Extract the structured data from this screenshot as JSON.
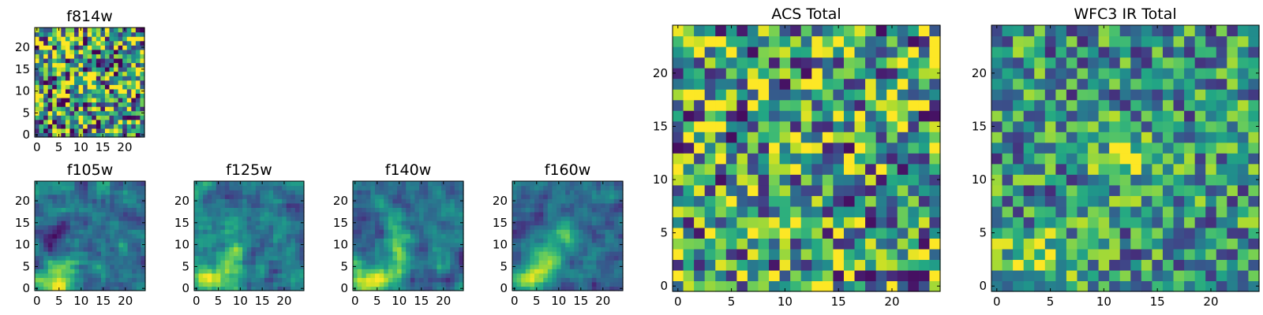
{
  "chart_data": [
    {
      "type": "heatmap",
      "title": "f814w",
      "colormap": "viridis",
      "pixels": [
        25,
        25
      ],
      "xlim": [
        -0.5,
        24.5
      ],
      "ylim": [
        -0.5,
        24.5
      ],
      "xticks": [
        "0",
        "5",
        "10",
        "15",
        "20"
      ],
      "yticks": [
        "0",
        "5",
        "10",
        "15",
        "20"
      ],
      "pattern": "noise",
      "noise": 0.6,
      "base": 0.55,
      "seed": 11,
      "blobs": [
        {
          "x": 12,
          "y": 12,
          "sx": 1.5,
          "sy": 1.2,
          "amp": 0.35
        }
      ]
    },
    {
      "type": "heatmap",
      "title": "f105w",
      "colormap": "viridis",
      "pixels": [
        25,
        25
      ],
      "xlim": [
        -0.5,
        24.5
      ],
      "ylim": [
        -0.5,
        24.5
      ],
      "xticks": [
        "0",
        "5",
        "10",
        "15",
        "20"
      ],
      "yticks": [
        "0",
        "5",
        "10",
        "15",
        "20"
      ],
      "pattern": "smooth",
      "noise": 0.22,
      "base": 0.38,
      "seed": 23,
      "blobs": [
        {
          "x": 4,
          "y": 1,
          "sx": 3.0,
          "sy": 2.0,
          "amp": 0.6
        },
        {
          "x": 7,
          "y": 6,
          "sx": 2.5,
          "sy": 3.0,
          "amp": 0.25
        },
        {
          "x": 4,
          "y": 12,
          "sx": 2.0,
          "sy": 2.0,
          "amp": -0.3
        }
      ]
    },
    {
      "type": "heatmap",
      "title": "f125w",
      "colormap": "viridis",
      "pixels": [
        25,
        25
      ],
      "xlim": [
        -0.5,
        24.5
      ],
      "ylim": [
        -0.5,
        24.5
      ],
      "xticks": [
        "0",
        "5",
        "10",
        "15",
        "20"
      ],
      "yticks": [
        "0",
        "5",
        "10",
        "15",
        "20"
      ],
      "pattern": "smooth",
      "noise": 0.22,
      "base": 0.4,
      "seed": 37,
      "blobs": [
        {
          "x": 4,
          "y": 2,
          "sx": 3.5,
          "sy": 2.5,
          "amp": 0.55
        },
        {
          "x": 8,
          "y": 8,
          "sx": 2.0,
          "sy": 3.5,
          "amp": 0.3
        }
      ]
    },
    {
      "type": "heatmap",
      "title": "f140w",
      "colormap": "viridis",
      "pixels": [
        25,
        25
      ],
      "xlim": [
        -0.5,
        24.5
      ],
      "ylim": [
        -0.5,
        24.5
      ],
      "xticks": [
        "0",
        "5",
        "10",
        "15",
        "20"
      ],
      "yticks": [
        "0",
        "5",
        "10",
        "15",
        "20"
      ],
      "pattern": "smooth",
      "noise": 0.2,
      "base": 0.38,
      "seed": 51,
      "blobs": [
        {
          "x": 4,
          "y": 2,
          "sx": 3.5,
          "sy": 2.0,
          "amp": 0.6
        },
        {
          "x": 10,
          "y": 9,
          "sx": 2.0,
          "sy": 4.0,
          "amp": 0.4
        }
      ]
    },
    {
      "type": "heatmap",
      "title": "f160w",
      "colormap": "viridis",
      "pixels": [
        25,
        25
      ],
      "xlim": [
        -0.5,
        24.5
      ],
      "ylim": [
        -0.5,
        24.5
      ],
      "xticks": [
        "0",
        "5",
        "10",
        "15",
        "20"
      ],
      "yticks": [
        "0",
        "5",
        "10",
        "15",
        "20"
      ],
      "pattern": "smooth",
      "noise": 0.18,
      "base": 0.35,
      "seed": 67,
      "blobs": [
        {
          "x": 3,
          "y": 2,
          "sx": 3.0,
          "sy": 2.0,
          "amp": 0.6
        },
        {
          "x": 8,
          "y": 7,
          "sx": 2.5,
          "sy": 3.0,
          "amp": 0.4
        },
        {
          "x": 11,
          "y": 13,
          "sx": 2.0,
          "sy": 2.0,
          "amp": 0.35
        }
      ]
    },
    {
      "type": "heatmap",
      "title": "ACS Total",
      "colormap": "viridis",
      "pixels": [
        25,
        25
      ],
      "xlim": [
        -0.5,
        24.5
      ],
      "ylim": [
        -0.5,
        24.5
      ],
      "xticks": [
        "0",
        "5",
        "10",
        "15",
        "20"
      ],
      "yticks": [
        "0",
        "5",
        "10",
        "15",
        "20"
      ],
      "pattern": "noise",
      "noise": 0.55,
      "base": 0.58,
      "seed": 83,
      "blobs": [
        {
          "x": 12,
          "y": 12,
          "sx": 1.2,
          "sy": 1.2,
          "amp": 0.4
        }
      ]
    },
    {
      "type": "heatmap",
      "title": "WFC3 IR Total",
      "colormap": "viridis",
      "pixels": [
        25,
        25
      ],
      "xlim": [
        -0.5,
        24.5
      ],
      "ylim": [
        -0.5,
        24.5
      ],
      "xticks": [
        "0",
        "5",
        "10",
        "15",
        "20"
      ],
      "yticks": [
        "0",
        "5",
        "10",
        "15",
        "20"
      ],
      "pattern": "noise",
      "noise": 0.38,
      "base": 0.5,
      "seed": 97,
      "blobs": [
        {
          "x": 12,
          "y": 12,
          "sx": 1.8,
          "sy": 1.5,
          "amp": 0.45
        },
        {
          "x": 4,
          "y": 2,
          "sx": 3.0,
          "sy": 2.0,
          "amp": 0.35
        }
      ]
    }
  ]
}
